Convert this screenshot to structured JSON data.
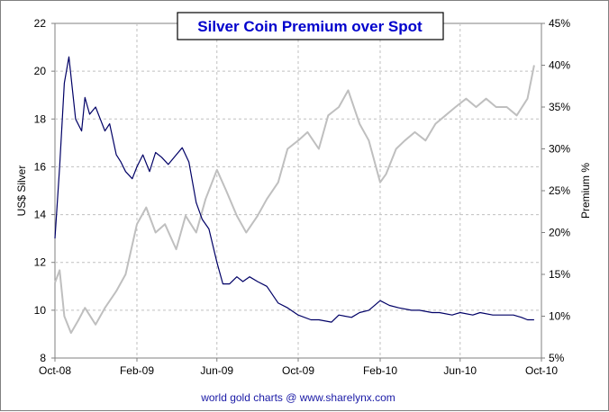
{
  "chart_data": {
    "type": "line",
    "title": "Silver Coin Premium over Spot",
    "ylabel": "US$ Silver",
    "y2label": "Premium %",
    "credit": "world gold charts @ www.sharelynx.com",
    "x_tick_labels": [
      "Oct-08",
      "Feb-09",
      "Jun-09",
      "Oct-09",
      "Feb-10",
      "Jun-10",
      "Oct-10"
    ],
    "x_tick_dates": [
      "2008-10-01",
      "2009-02-01",
      "2009-06-01",
      "2009-10-01",
      "2010-02-01",
      "2010-06-01",
      "2010-10-01"
    ],
    "xlim": [
      "2008-10-01",
      "2010-10-01"
    ],
    "ylim": [
      8,
      22
    ],
    "y_ticks": [
      8,
      10,
      12,
      14,
      16,
      18,
      20,
      22
    ],
    "y2lim": [
      5,
      45
    ],
    "y2_ticks": [
      5,
      10,
      15,
      20,
      25,
      30,
      35,
      40,
      45
    ],
    "y2_tick_labels": [
      "5%",
      "10%",
      "15%",
      "20%",
      "25%",
      "30%",
      "35%",
      "40%",
      "45%"
    ],
    "grid": true,
    "legend": "none",
    "series": [
      {
        "axis": "left",
        "color": "#000066",
        "x": [
          "2008-10-01",
          "2008-10-08",
          "2008-10-15",
          "2008-10-22",
          "2008-11-01",
          "2008-11-10",
          "2008-11-15",
          "2008-11-22",
          "2008-12-01",
          "2008-12-08",
          "2008-12-15",
          "2008-12-22",
          "2009-01-01",
          "2009-01-08",
          "2009-01-15",
          "2009-01-25",
          "2009-02-01",
          "2009-02-10",
          "2009-02-20",
          "2009-03-01",
          "2009-03-10",
          "2009-03-20",
          "2009-04-01",
          "2009-04-10",
          "2009-04-20",
          "2009-05-01",
          "2009-05-10",
          "2009-05-20",
          "2009-06-01",
          "2009-06-10",
          "2009-06-20",
          "2009-07-01",
          "2009-07-10",
          "2009-07-20",
          "2009-08-01",
          "2009-08-15",
          "2009-09-01",
          "2009-09-15",
          "2009-10-01",
          "2009-10-20",
          "2009-11-01",
          "2009-11-20",
          "2009-12-01",
          "2009-12-20",
          "2010-01-01",
          "2010-01-15",
          "2010-02-01",
          "2010-02-15",
          "2010-03-01",
          "2010-03-20",
          "2010-04-01",
          "2010-04-20",
          "2010-05-01",
          "2010-05-20",
          "2010-06-01",
          "2010-06-20",
          "2010-07-01",
          "2010-07-20",
          "2010-08-01",
          "2010-08-20",
          "2010-09-01",
          "2010-09-10",
          "2010-09-20"
        ],
        "values": [
          13,
          16,
          19.5,
          20.6,
          18,
          17.5,
          18.9,
          18.2,
          18.5,
          18,
          17.5,
          17.8,
          16.5,
          16.2,
          15.8,
          15.5,
          16,
          16.5,
          15.8,
          16.6,
          16.4,
          16.1,
          16.5,
          16.8,
          16.2,
          14.5,
          13.8,
          13.4,
          12,
          11.1,
          11.1,
          11.4,
          11.2,
          11.4,
          11.2,
          11,
          10.3,
          10.1,
          9.8,
          9.6,
          9.6,
          9.5,
          9.8,
          9.7,
          9.9,
          10.0,
          10.4,
          10.2,
          10.1,
          10.0,
          10.0,
          9.9,
          9.9,
          9.8,
          9.9,
          9.8,
          9.9,
          9.8,
          9.8,
          9.8,
          9.7,
          9.6,
          9.6
        ]
      },
      {
        "axis": "right",
        "color": "#bfbfbf",
        "x": [
          "2008-10-01",
          "2008-10-08",
          "2008-10-15",
          "2008-10-25",
          "2008-11-05",
          "2008-11-15",
          "2008-12-01",
          "2008-12-15",
          "2009-01-01",
          "2009-01-15",
          "2009-02-01",
          "2009-02-15",
          "2009-03-01",
          "2009-03-15",
          "2009-04-01",
          "2009-04-15",
          "2009-05-01",
          "2009-05-15",
          "2009-06-01",
          "2009-06-15",
          "2009-07-01",
          "2009-07-15",
          "2009-08-01",
          "2009-08-15",
          "2009-09-01",
          "2009-09-15",
          "2009-10-01",
          "2009-10-15",
          "2009-11-01",
          "2009-11-15",
          "2009-12-01",
          "2009-12-15",
          "2010-01-01",
          "2010-01-15",
          "2010-02-01",
          "2010-02-10",
          "2010-02-25",
          "2010-03-10",
          "2010-03-25",
          "2010-04-10",
          "2010-04-25",
          "2010-05-10",
          "2010-05-25",
          "2010-06-10",
          "2010-06-25",
          "2010-07-10",
          "2010-07-25",
          "2010-08-10",
          "2010-08-25",
          "2010-09-10",
          "2010-09-20"
        ],
        "values": [
          14,
          15.5,
          10,
          8,
          9.5,
          11,
          9,
          11,
          13,
          15,
          21,
          23,
          20,
          21,
          18,
          22,
          20,
          24,
          27.5,
          25,
          22,
          20,
          22,
          24,
          26,
          30,
          31,
          32,
          30,
          34,
          35,
          37,
          33,
          31,
          26,
          27,
          30,
          31,
          32,
          31,
          33,
          34,
          35,
          36,
          35,
          36,
          35,
          35,
          34,
          36,
          40
        ]
      }
    ]
  }
}
